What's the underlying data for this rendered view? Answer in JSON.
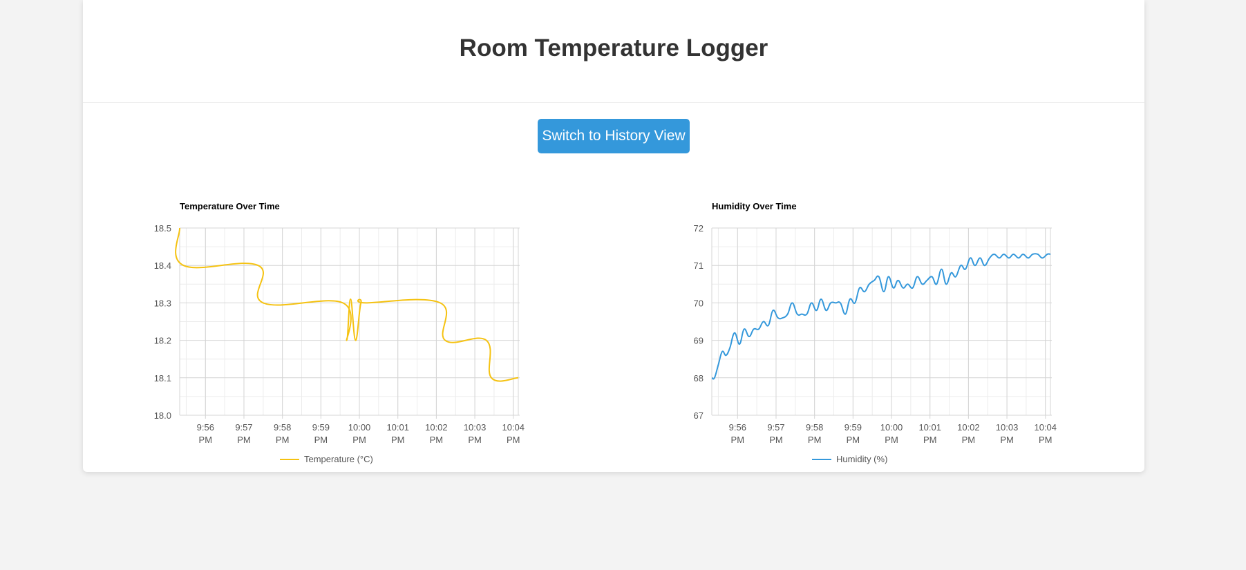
{
  "page": {
    "title": "Room Temperature Logger"
  },
  "toolbar": {
    "switch_label": "Switch to History View"
  },
  "colors": {
    "temperature": "#f5c211",
    "humidity": "#3498db",
    "button": "#3498db"
  },
  "chart_data": [
    {
      "type": "line",
      "title": "Temperature Over Time",
      "x_ticks": [
        "9:56 PM",
        "9:57 PM",
        "9:58 PM",
        "9:59 PM",
        "10:00 PM",
        "10:01 PM",
        "10:02 PM",
        "10:03 PM",
        "10:04 PM"
      ],
      "x_tick_minutes": [
        1,
        2,
        3,
        4,
        5,
        6,
        7,
        8,
        9
      ],
      "xlim_minutes": [
        0.33,
        9.13
      ],
      "ylim": [
        18.0,
        18.5
      ],
      "y_ticks": [
        18.0,
        18.1,
        18.2,
        18.3,
        18.4,
        18.5
      ],
      "legend": "bottom",
      "grid": true,
      "series": [
        {
          "name": "Temperature (°C)",
          "color": "#f5c211",
          "x": [
            0.33,
            0.43,
            2.37,
            2.5,
            4.57,
            4.67,
            4.77,
            4.9,
            5.04,
            5.17,
            7.1,
            7.23,
            8.3,
            8.43,
            9.13
          ],
          "y": [
            18.5,
            18.4,
            18.4,
            18.3,
            18.3,
            18.2,
            18.31,
            18.2,
            18.3,
            18.3,
            18.3,
            18.2,
            18.2,
            18.1,
            18.1
          ]
        }
      ]
    },
    {
      "type": "line",
      "title": "Humidity Over Time",
      "x_ticks": [
        "9:56 PM",
        "9:57 PM",
        "9:58 PM",
        "9:59 PM",
        "10:00 PM",
        "10:01 PM",
        "10:02 PM",
        "10:03 PM",
        "10:04 PM"
      ],
      "x_tick_minutes": [
        1,
        2,
        3,
        4,
        5,
        6,
        7,
        8,
        9
      ],
      "xlim_minutes": [
        0.33,
        9.13
      ],
      "ylim": [
        67,
        72
      ],
      "y_ticks": [
        67,
        68,
        69,
        70,
        71,
        72
      ],
      "legend": "bottom",
      "grid": true,
      "series": [
        {
          "name": "Humidity (%)",
          "color": "#3498db",
          "x": [
            0.33,
            0.4,
            0.5,
            0.6,
            0.7,
            0.8,
            0.92,
            1.05,
            1.17,
            1.3,
            1.42,
            1.55,
            1.67,
            1.8,
            1.92,
            2.05,
            2.17,
            2.3,
            2.42,
            2.55,
            2.67,
            2.8,
            2.92,
            3.05,
            3.17,
            3.3,
            3.42,
            3.55,
            3.67,
            3.8,
            3.92,
            4.05,
            4.17,
            4.3,
            4.42,
            4.55,
            4.67,
            4.8,
            4.92,
            5.05,
            5.17,
            5.3,
            5.42,
            5.55,
            5.67,
            5.8,
            5.92,
            6.05,
            6.17,
            6.3,
            6.42,
            6.55,
            6.67,
            6.8,
            6.92,
            7.05,
            7.17,
            7.3,
            7.42,
            7.55,
            7.67,
            7.8,
            7.92,
            8.05,
            8.17,
            8.3,
            8.42,
            8.55,
            8.67,
            8.8,
            8.92,
            9.05,
            9.13
          ],
          "y": [
            68.0,
            68.0,
            68.35,
            68.7,
            68.6,
            68.8,
            69.2,
            68.9,
            69.3,
            69.1,
            69.3,
            69.3,
            69.5,
            69.4,
            69.8,
            69.6,
            69.6,
            69.7,
            70.0,
            69.7,
            69.7,
            69.7,
            70.0,
            69.8,
            70.1,
            69.8,
            70.0,
            70.0,
            70.0,
            69.7,
            70.1,
            70.0,
            70.4,
            70.3,
            70.5,
            70.6,
            70.7,
            70.3,
            70.7,
            70.4,
            70.6,
            70.4,
            70.5,
            70.4,
            70.7,
            70.5,
            70.6,
            70.7,
            70.5,
            70.9,
            70.5,
            70.8,
            70.7,
            71.0,
            70.9,
            71.2,
            71.0,
            71.2,
            71.0,
            71.2,
            71.3,
            71.2,
            71.3,
            71.2,
            71.3,
            71.2,
            71.3,
            71.2,
            71.3,
            71.3,
            71.2,
            71.3,
            71.3
          ]
        }
      ]
    }
  ]
}
